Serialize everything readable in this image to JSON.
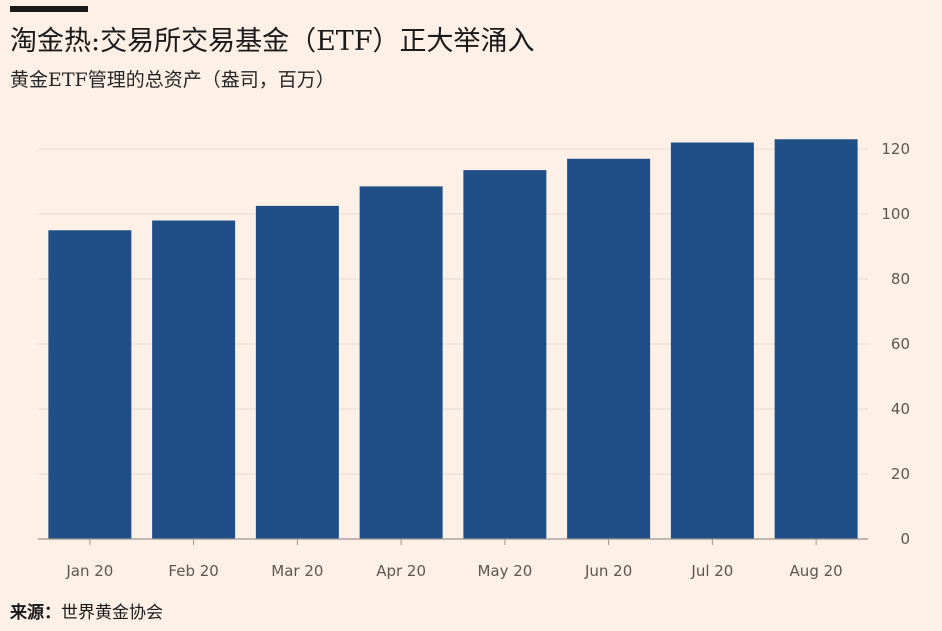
{
  "header": {
    "title": "淘金热:交易所交易基金（ETF）正大举涌入",
    "subtitle": "黄金ETF管理的总资产（盎司，百万）"
  },
  "footer": {
    "source_label": "来源：",
    "source_text": "世界黄金协会"
  },
  "colors": {
    "background": "#fdf0e6",
    "bar": "#1f4f86",
    "grid": "#e8dcd2",
    "axis": "#9a9590"
  },
  "chart_data": {
    "type": "bar",
    "title": "淘金热:交易所交易基金（ETF）正大举涌入",
    "subtitle": "黄金ETF管理的总资产（盎司，百万）",
    "categories": [
      "Jan 20",
      "Feb 20",
      "Mar 20",
      "Apr 20",
      "May 20",
      "Jun 20",
      "Jul 20",
      "Aug 20"
    ],
    "values": [
      95,
      98,
      102.5,
      108.5,
      113.5,
      117,
      122,
      123
    ],
    "ylim": [
      0,
      120
    ],
    "yticks": [
      0,
      20,
      40,
      60,
      80,
      100,
      120
    ],
    "ytick_labels": [
      "0",
      "20",
      "40",
      "60",
      "80",
      "100",
      "120"
    ],
    "y_axis_side": "right",
    "grid": true,
    "legend": "none"
  }
}
